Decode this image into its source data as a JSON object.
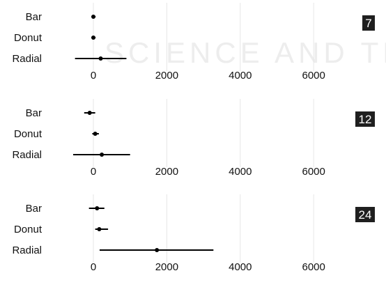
{
  "watermark": {
    "line1": "SCIENCE AND TECHNOLOGY"
  },
  "colors": {
    "badge_bg": "#1f1f1f",
    "grid": "#e6e6e6",
    "mark": "#000000",
    "watermark": "#ededed"
  },
  "chart_data": [
    {
      "type": "dot-interval",
      "badge": "7",
      "categories": [
        "Bar",
        "Donut",
        "Radial"
      ],
      "estimates": [
        0,
        0,
        200
      ],
      "intervals": [
        [
          -50,
          60
        ],
        [
          -50,
          60
        ],
        [
          -500,
          900
        ]
      ],
      "xticks": [
        "0",
        "2000",
        "4000",
        "6000"
      ],
      "xlim": [
        -1300,
        8000
      ],
      "grid": true
    },
    {
      "type": "dot-interval",
      "badge": "12",
      "categories": [
        "Bar",
        "Donut",
        "Radial"
      ],
      "estimates": [
        -100,
        50,
        230
      ],
      "intervals": [
        [
          -250,
          50
        ],
        [
          -30,
          150
        ],
        [
          -550,
          1000
        ]
      ],
      "xticks": [
        "0",
        "2000",
        "4000",
        "6000"
      ],
      "xlim": [
        -1300,
        8000
      ],
      "grid": true
    },
    {
      "type": "dot-interval",
      "badge": "24",
      "categories": [
        "Bar",
        "Donut",
        "Radial"
      ],
      "estimates": [
        100,
        160,
        1730
      ],
      "intervals": [
        [
          -120,
          300
        ],
        [
          50,
          400
        ],
        [
          170,
          3270
        ]
      ],
      "xticks": [
        "0",
        "2000",
        "4000",
        "6000"
      ],
      "xlim": [
        -1300,
        8000
      ],
      "grid": true
    }
  ]
}
